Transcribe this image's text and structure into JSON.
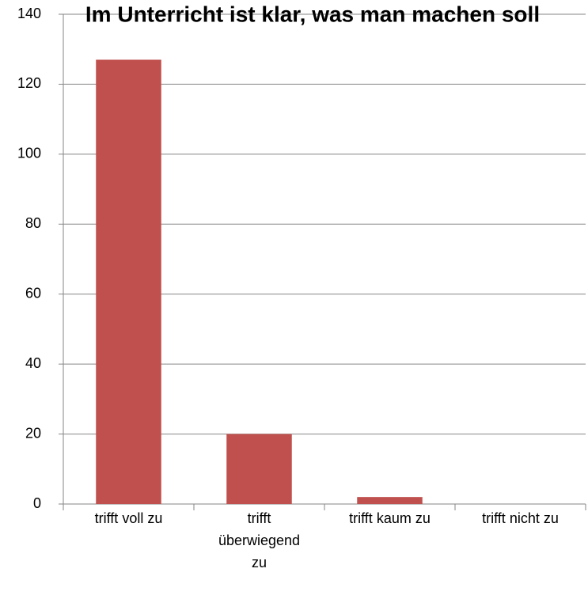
{
  "chart_data": {
    "type": "bar",
    "title": "Im Unterricht ist klar, was man machen soll",
    "categories": [
      "trifft voll zu",
      "trifft überwiegend zu",
      "trifft kaum zu",
      "trifft nicht zu"
    ],
    "values": [
      127,
      20,
      2,
      0
    ],
    "color": "#c0504d",
    "ylim": [
      0,
      140
    ],
    "yticks": [
      0,
      20,
      40,
      60,
      80,
      100,
      120,
      140
    ],
    "grid": true
  }
}
